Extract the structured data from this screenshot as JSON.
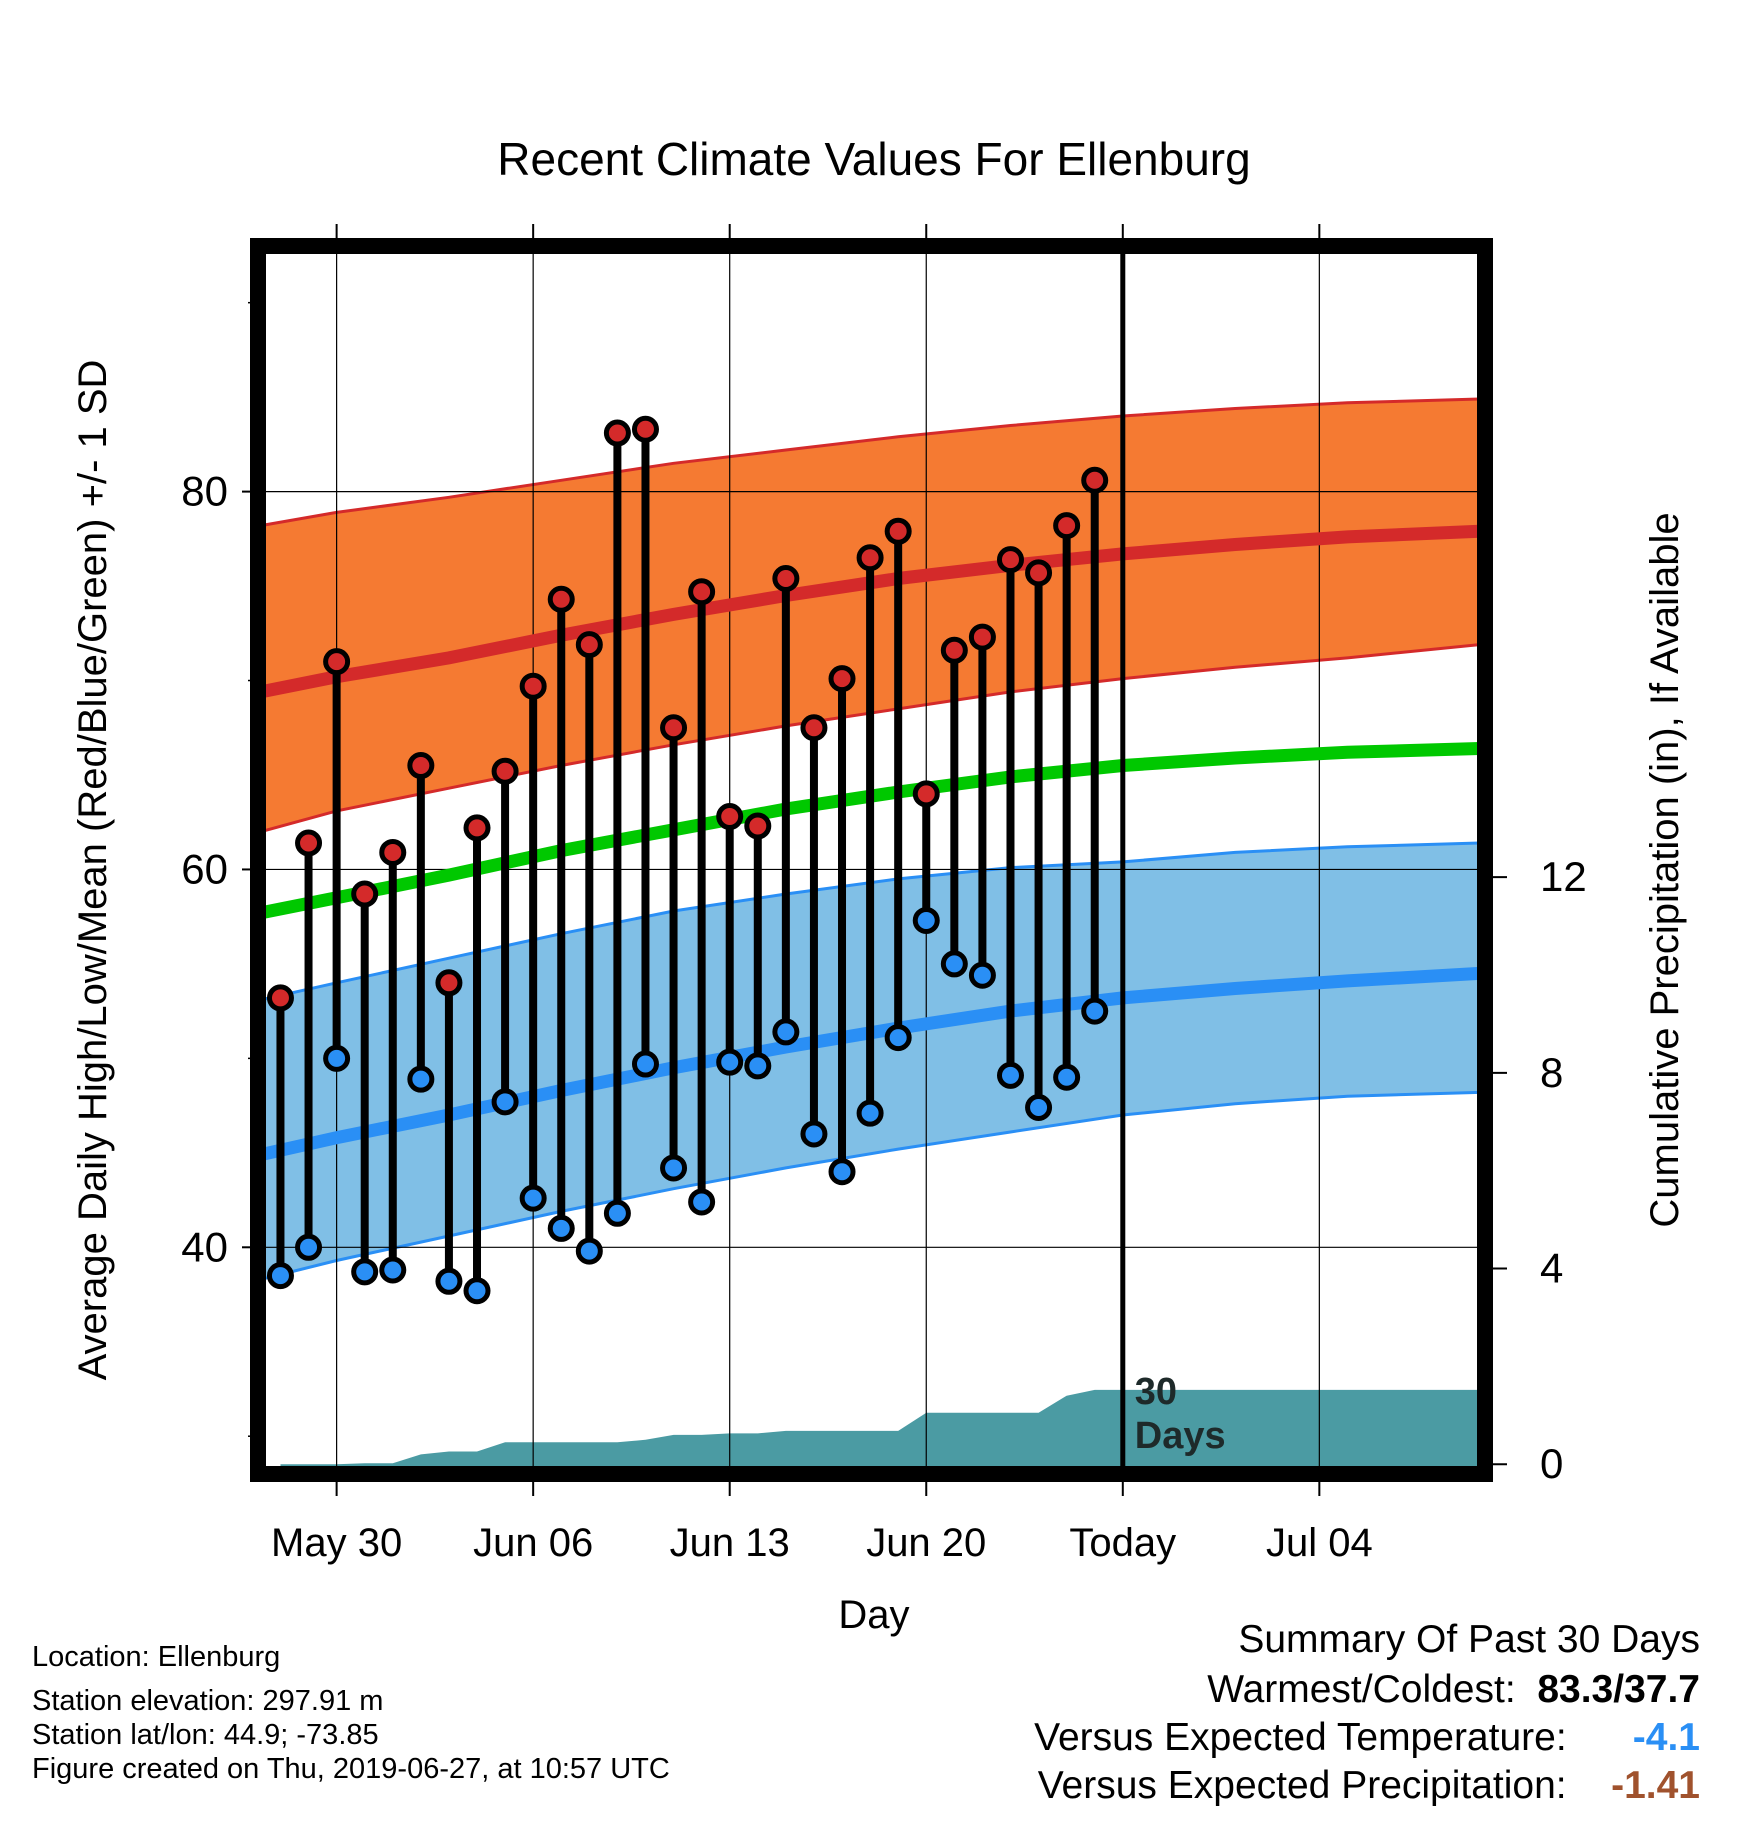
{
  "chart_data": {
    "type": "line",
    "title": "Recent Climate Values For Ellenburg",
    "xlabel": "Day",
    "ylabel": "Average Daily High/Low/Mean (Red/Blue/Green) +/- 1 SD",
    "y2label": "Cumulative Precipitation (in), If Available",
    "ylim": [
      28,
      93
    ],
    "y2lim": [
      -0.2,
      24.9
    ],
    "xlim": [
      -2.8,
      40.9
    ],
    "x_ticks": [
      {
        "x": 0,
        "label": "May 30"
      },
      {
        "x": 7,
        "label": "Jun 06"
      },
      {
        "x": 14,
        "label": "Jun 13"
      },
      {
        "x": 21,
        "label": "Jun 20"
      },
      {
        "x": 28,
        "label": "Today"
      },
      {
        "x": 35,
        "label": "Jul 04"
      }
    ],
    "y_ticks": [
      40,
      60,
      80
    ],
    "y2_ticks": [
      0,
      4,
      8,
      12
    ],
    "today_x": 28,
    "today_annotation": [
      "30",
      "Days"
    ],
    "grid": true,
    "normals": {
      "x": [
        -2.7,
        0,
        4,
        8,
        12,
        16,
        20,
        24,
        28,
        32,
        36,
        40.7
      ],
      "high_mean": [
        69.4,
        70.2,
        71.2,
        72.4,
        73.5,
        74.5,
        75.4,
        76.1,
        76.7,
        77.2,
        77.6,
        77.9
      ],
      "high_upper": [
        78.2,
        78.9,
        79.7,
        80.6,
        81.5,
        82.2,
        82.9,
        83.5,
        84.0,
        84.4,
        84.7,
        84.9
      ],
      "high_lower": [
        62.0,
        63.1,
        64.3,
        65.5,
        66.6,
        67.6,
        68.5,
        69.4,
        70.1,
        70.7,
        71.2,
        71.9
      ],
      "mean_mean": [
        57.7,
        58.5,
        59.7,
        61.0,
        62.1,
        63.2,
        64.1,
        64.9,
        65.5,
        65.9,
        66.2,
        66.4
      ],
      "low_mean": [
        44.9,
        45.8,
        47.0,
        48.3,
        49.5,
        50.6,
        51.6,
        52.5,
        53.2,
        53.7,
        54.1,
        54.5
      ],
      "low_upper": [
        53.1,
        54.0,
        55.3,
        56.6,
        57.8,
        58.7,
        59.5,
        60.1,
        60.4,
        60.9,
        61.2,
        61.4
      ],
      "low_lower": [
        38.3,
        39.3,
        40.6,
        41.9,
        43.1,
        44.2,
        45.2,
        46.1,
        47.0,
        47.6,
        48.0,
        48.2
      ]
    },
    "observed": {
      "x": [
        -2,
        -1,
        0,
        1,
        2,
        3,
        4,
        5,
        6,
        7,
        8,
        9,
        10,
        11,
        12,
        13,
        14,
        15,
        16,
        17,
        18,
        19,
        20,
        21,
        22,
        23,
        24,
        25,
        26,
        27
      ],
      "high": [
        53.2,
        61.4,
        71.0,
        58.7,
        60.9,
        65.5,
        54.0,
        62.2,
        65.2,
        69.7,
        74.3,
        71.9,
        83.1,
        83.3,
        67.5,
        74.7,
        62.8,
        62.3,
        75.4,
        67.5,
        70.1,
        76.5,
        77.9,
        64.0,
        71.6,
        72.3,
        76.4,
        75.7,
        78.2,
        80.6
      ],
      "low": [
        38.5,
        40.0,
        50.0,
        38.7,
        38.8,
        48.9,
        38.2,
        37.7,
        47.7,
        42.6,
        41.0,
        39.8,
        41.8,
        49.7,
        44.2,
        42.4,
        49.8,
        49.6,
        51.4,
        46.0,
        44.0,
        47.1,
        51.1,
        57.3,
        55.0,
        54.4,
        49.1,
        47.4,
        49.0,
        52.5
      ]
    },
    "precipitation": {
      "x": [
        -2.0,
        0.0,
        1.0,
        2.0,
        3.0,
        4.0,
        5.0,
        6.0,
        7.0,
        8.0,
        9.0,
        10.0,
        11.0,
        12.0,
        13.0,
        14.0,
        15.0,
        16.0,
        17.0,
        18.0,
        19.0,
        20.0,
        21.0,
        22.0,
        23.0,
        24.0,
        25.0,
        26.0,
        27.0,
        28.0,
        40.7
      ],
      "cumulative": [
        0.0,
        0.0,
        0.02,
        0.02,
        0.2,
        0.26,
        0.26,
        0.45,
        0.45,
        0.45,
        0.45,
        0.45,
        0.5,
        0.6,
        0.6,
        0.63,
        0.63,
        0.68,
        0.68,
        0.68,
        0.68,
        0.68,
        1.05,
        1.05,
        1.05,
        1.05,
        1.05,
        1.4,
        1.52,
        1.52,
        1.52
      ]
    }
  },
  "footer": {
    "location": "Location: Ellenburg",
    "elevation": "Station elevation: 297.91 m",
    "latlon": "Station lat/lon: 44.9; -73.85",
    "created": "Figure created on Thu, 2019-06-27, at 10:57 UTC"
  },
  "summary": {
    "heading": "Summary Of Past 30 Days",
    "warm_cold_label": "Warmest/Coldest:",
    "warm_cold_value": "83.3/37.7",
    "temp_label": "Versus Expected Temperature:",
    "temp_value": "-4.1",
    "precip_label": "Versus Expected Precipitation:",
    "precip_value": "-1.41"
  },
  "colors": {
    "high_band": "#f57a32",
    "high_line": "#d42a2a",
    "mean_line": "#00c800",
    "low_band": "#80bfe6",
    "low_line": "#2a8ff5",
    "precip_fill": "#4b9ba3",
    "high_dot": "#d42a2a",
    "low_dot": "#2a8ff5",
    "temp_value": "#2a8ff5",
    "precip_value": "#a0522d"
  }
}
